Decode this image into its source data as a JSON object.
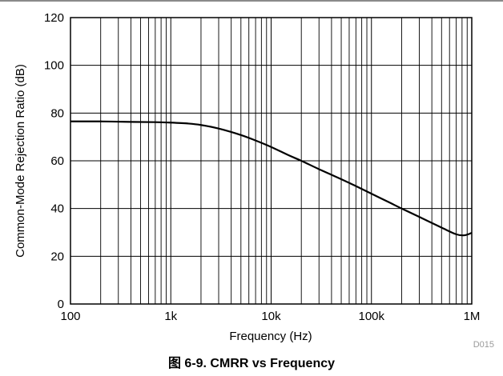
{
  "caption": "图 6-9. CMRR vs Frequency",
  "figure_code": "D015",
  "chart_data": {
    "type": "line",
    "title": "",
    "xlabel": "Frequency (Hz)",
    "ylabel": "Common-Mode Rejection Ratio (dB)",
    "x_scale": "log",
    "xlim": [
      100,
      1000000
    ],
    "ylim": [
      0,
      120
    ],
    "x_ticks": [
      100,
      1000,
      10000,
      100000,
      1000000
    ],
    "x_tick_labels": [
      "100",
      "1k",
      "10k",
      "100k",
      "1M"
    ],
    "y_ticks": [
      0,
      20,
      40,
      60,
      80,
      100,
      120
    ],
    "y_tick_labels": [
      "0",
      "20",
      "40",
      "60",
      "80",
      "100",
      "120"
    ],
    "grid": true,
    "line_color": "#000000",
    "series": [
      {
        "x": [
          100,
          200,
          400,
          700,
          1000,
          1500,
          2000,
          3000,
          5000,
          7000,
          10000,
          15000,
          20000,
          30000,
          50000,
          70000,
          100000,
          150000,
          200000,
          300000,
          500000,
          700000,
          850000,
          1000000
        ],
        "y": [
          76.5,
          76.5,
          76.3,
          76.2,
          76,
          75.6,
          75,
          73.5,
          70.8,
          68.5,
          65.8,
          62.3,
          60,
          56.5,
          52.3,
          49.4,
          46.2,
          42.6,
          40,
          36.5,
          32,
          29.2,
          28.8,
          29.8
        ]
      }
    ]
  }
}
